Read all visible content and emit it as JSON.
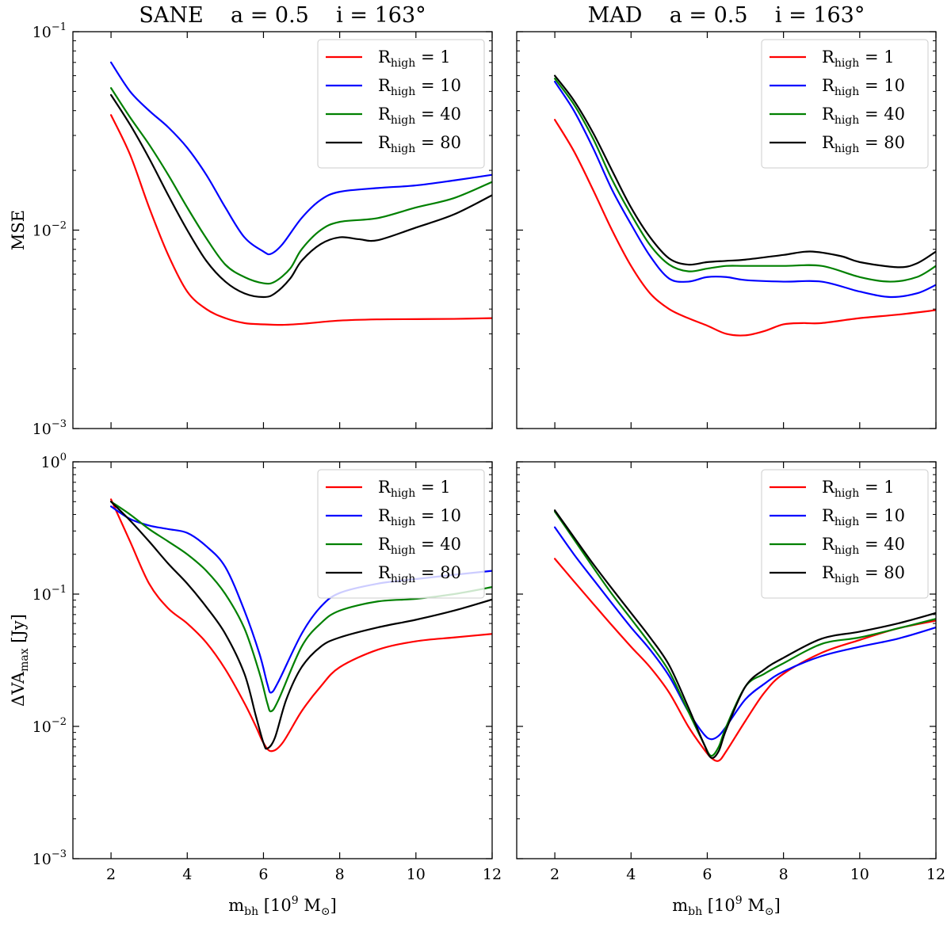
{
  "chart_data": [
    {
      "type": "line",
      "title": "SANE    a = 0.5    i = 163°",
      "xlabel": "",
      "ylabel": "MSE",
      "yscale": "log",
      "xlim": [
        1,
        12
      ],
      "ylim": [
        0.001,
        0.1
      ],
      "xticks": [
        2,
        4,
        6,
        8,
        10,
        12
      ],
      "xtick_labels_shown": false,
      "yticks": [
        0.001,
        0.01,
        0.1
      ],
      "ytick_labels": [
        {
          "base": "10",
          "exp": "−3"
        },
        {
          "base": "10",
          "exp": "−2"
        },
        {
          "base": "10",
          "exp": "−1"
        }
      ],
      "legend_position": "top-right",
      "series": [
        {
          "name": "R",
          "sub": "high",
          "suffix": " = 1",
          "color": "#ff0000",
          "x": [
            2,
            2.5,
            3,
            3.5,
            4,
            4.5,
            5,
            5.5,
            6,
            6.5,
            7,
            8,
            9,
            10,
            11,
            12
          ],
          "y": [
            0.038,
            0.024,
            0.013,
            0.0075,
            0.0049,
            0.004,
            0.0036,
            0.0034,
            0.00335,
            0.00333,
            0.00337,
            0.0035,
            0.00355,
            0.00356,
            0.00357,
            0.0036
          ]
        },
        {
          "name": "R",
          "sub": "high",
          "suffix": " = 10",
          "color": "#0000ff",
          "x": [
            2,
            2.5,
            3,
            3.5,
            4,
            4.5,
            5,
            5.5,
            6,
            6.2,
            6.5,
            7,
            7.5,
            8,
            9,
            10,
            11,
            12
          ],
          "y": [
            0.07,
            0.05,
            0.04,
            0.033,
            0.026,
            0.019,
            0.013,
            0.0092,
            0.0078,
            0.0076,
            0.0085,
            0.0115,
            0.0142,
            0.0156,
            0.0163,
            0.0168,
            0.0178,
            0.019
          ]
        },
        {
          "name": "R",
          "sub": "high",
          "suffix": " = 40",
          "color": "#008000",
          "x": [
            2,
            2.5,
            3,
            3.5,
            4,
            4.5,
            5,
            5.5,
            6,
            6.3,
            6.7,
            7,
            7.5,
            8,
            9,
            10,
            11,
            12
          ],
          "y": [
            0.052,
            0.037,
            0.027,
            0.019,
            0.013,
            0.0091,
            0.0067,
            0.0058,
            0.0054,
            0.0055,
            0.0064,
            0.008,
            0.01,
            0.011,
            0.0115,
            0.013,
            0.0145,
            0.0175
          ]
        },
        {
          "name": "R",
          "sub": "high",
          "suffix": " = 80",
          "color": "#000000",
          "x": [
            2,
            2.5,
            3,
            3.5,
            4,
            4.5,
            5,
            5.5,
            6,
            6.3,
            6.7,
            7,
            7.5,
            8,
            8.5,
            9,
            10,
            11,
            12
          ],
          "y": [
            0.048,
            0.034,
            0.023,
            0.015,
            0.01,
            0.007,
            0.0055,
            0.0048,
            0.0046,
            0.0048,
            0.0057,
            0.007,
            0.0085,
            0.0092,
            0.009,
            0.0089,
            0.0103,
            0.012,
            0.015
          ]
        }
      ]
    },
    {
      "type": "line",
      "title": "MAD    a = 0.5    i = 163°",
      "xlabel": "",
      "ylabel": "",
      "yscale": "log",
      "xlim": [
        1,
        12
      ],
      "ylim": [
        0.001,
        0.1
      ],
      "xticks": [
        2,
        4,
        6,
        8,
        10,
        12
      ],
      "xtick_labels_shown": false,
      "yticks": [
        0.001,
        0.01,
        0.1
      ],
      "ytick_labels_shown": false,
      "legend_position": "top-right",
      "series": [
        {
          "name": "R",
          "sub": "high",
          "suffix": " = 1",
          "color": "#ff0000",
          "x": [
            2,
            2.5,
            3,
            3.5,
            4,
            4.5,
            5,
            5.5,
            6,
            6.5,
            7,
            7.5,
            8,
            8.5,
            9,
            10,
            11,
            12
          ],
          "y": [
            0.036,
            0.025,
            0.016,
            0.01,
            0.0066,
            0.0048,
            0.004,
            0.0036,
            0.0033,
            0.003,
            0.00295,
            0.0031,
            0.00335,
            0.0034,
            0.0034,
            0.0036,
            0.00375,
            0.00395
          ]
        },
        {
          "name": "R",
          "sub": "high",
          "suffix": " = 10",
          "color": "#0000ff",
          "x": [
            2,
            2.5,
            3,
            3.5,
            4,
            4.5,
            5,
            5.5,
            6,
            6.5,
            7,
            8,
            9,
            10,
            10.8,
            11.5,
            12
          ],
          "y": [
            0.056,
            0.04,
            0.026,
            0.016,
            0.0107,
            0.0074,
            0.0057,
            0.0055,
            0.0058,
            0.0058,
            0.0056,
            0.0055,
            0.0055,
            0.0049,
            0.0046,
            0.0048,
            0.0053
          ]
        },
        {
          "name": "R",
          "sub": "high",
          "suffix": " = 40",
          "color": "#008000",
          "x": [
            2,
            2.5,
            3,
            3.5,
            4,
            4.5,
            5,
            5.5,
            6,
            6.5,
            7,
            8,
            9,
            10,
            10.8,
            11.5,
            12
          ],
          "y": [
            0.058,
            0.043,
            0.029,
            0.018,
            0.012,
            0.0084,
            0.0067,
            0.0062,
            0.0064,
            0.0066,
            0.0066,
            0.0066,
            0.0066,
            0.0058,
            0.0055,
            0.0058,
            0.0066
          ]
        },
        {
          "name": "R",
          "sub": "high",
          "suffix": " = 80",
          "color": "#000000",
          "x": [
            2,
            2.5,
            3,
            3.5,
            4,
            4.5,
            5,
            5.5,
            6,
            6.5,
            7,
            8,
            8.7,
            9.5,
            10,
            11,
            11.5,
            12
          ],
          "y": [
            0.06,
            0.045,
            0.031,
            0.02,
            0.013,
            0.0092,
            0.0072,
            0.0067,
            0.0069,
            0.007,
            0.0071,
            0.0075,
            0.0078,
            0.0074,
            0.0069,
            0.0065,
            0.0068,
            0.0078
          ]
        }
      ]
    },
    {
      "type": "line",
      "title": "",
      "xlabel": {
        "base": "m",
        "sub": "bh",
        "unit_pre": "[10",
        "unit_exp": "9",
        "unit_mid": " M",
        "unit_sub": "⊙",
        "unit_post": "]"
      },
      "ylabel": {
        "base": "ΔVA",
        "sub": "max",
        "unit": " [Jy]"
      },
      "yscale": "log",
      "xlim": [
        1,
        12
      ],
      "ylim": [
        0.001,
        1
      ],
      "xticks": [
        2,
        4,
        6,
        8,
        10,
        12
      ],
      "xtick_labels": [
        "2",
        "4",
        "6",
        "8",
        "10",
        "12"
      ],
      "yticks": [
        0.001,
        0.01,
        0.1,
        1
      ],
      "ytick_labels": [
        {
          "base": "10",
          "exp": "−3"
        },
        {
          "base": "10",
          "exp": "−2"
        },
        {
          "base": "10",
          "exp": "−1"
        },
        {
          "base": "10",
          "exp": "0"
        }
      ],
      "legend_position": "top-right",
      "series": [
        {
          "name": "R",
          "sub": "high",
          "suffix": " = 1",
          "color": "#ff0000",
          "x": [
            2,
            2.5,
            3,
            3.5,
            4,
            4.5,
            5,
            5.5,
            5.8,
            6,
            6.2,
            6.5,
            7,
            7.5,
            8,
            9,
            10,
            11,
            12
          ],
          "y": [
            0.52,
            0.25,
            0.12,
            0.078,
            0.06,
            0.043,
            0.027,
            0.015,
            0.01,
            0.0075,
            0.0065,
            0.0075,
            0.013,
            0.02,
            0.028,
            0.038,
            0.044,
            0.047,
            0.05
          ]
        },
        {
          "name": "R",
          "sub": "high",
          "suffix": " = 10",
          "color": "#0000ff",
          "x": [
            2,
            2.5,
            3,
            3.5,
            4,
            4.5,
            5,
            5.5,
            5.9,
            6.1,
            6.2,
            6.4,
            7,
            7.5,
            8,
            9,
            10,
            11,
            12
          ],
          "y": [
            0.46,
            0.37,
            0.33,
            0.31,
            0.29,
            0.23,
            0.16,
            0.075,
            0.035,
            0.021,
            0.018,
            0.022,
            0.05,
            0.08,
            0.102,
            0.12,
            0.13,
            0.14,
            0.15
          ]
        },
        {
          "name": "R",
          "sub": "high",
          "suffix": " = 40",
          "color": "#008000",
          "x": [
            2,
            2.5,
            3,
            3.5,
            4,
            4.5,
            5,
            5.5,
            5.9,
            6.1,
            6.2,
            6.4,
            7,
            7.5,
            8,
            9,
            10,
            11,
            12
          ],
          "y": [
            0.5,
            0.4,
            0.31,
            0.25,
            0.2,
            0.15,
            0.1,
            0.055,
            0.025,
            0.015,
            0.013,
            0.016,
            0.04,
            0.06,
            0.075,
            0.088,
            0.092,
            0.1,
            0.113
          ]
        },
        {
          "name": "R",
          "sub": "high",
          "suffix": " = 80",
          "color": "#000000",
          "x": [
            2,
            2.5,
            3,
            3.5,
            4,
            4.5,
            5,
            5.5,
            5.8,
            6,
            6.1,
            6.3,
            6.6,
            7,
            7.5,
            8,
            9,
            10,
            11,
            12
          ],
          "y": [
            0.5,
            0.36,
            0.25,
            0.17,
            0.12,
            0.08,
            0.05,
            0.025,
            0.012,
            0.0075,
            0.0068,
            0.0082,
            0.016,
            0.028,
            0.04,
            0.047,
            0.056,
            0.064,
            0.075,
            0.091
          ]
        }
      ]
    },
    {
      "type": "line",
      "title": "",
      "xlabel": {
        "base": "m",
        "sub": "bh",
        "unit_pre": "[10",
        "unit_exp": "9",
        "unit_mid": " M",
        "unit_sub": "⊙",
        "unit_post": "]"
      },
      "ylabel": "",
      "yscale": "log",
      "xlim": [
        1,
        12
      ],
      "ylim": [
        0.001,
        1
      ],
      "xticks": [
        2,
        4,
        6,
        8,
        10,
        12
      ],
      "xtick_labels": [
        "2",
        "4",
        "6",
        "8",
        "10",
        "12"
      ],
      "yticks": [
        0.001,
        0.01,
        0.1,
        1
      ],
      "ytick_labels_shown": false,
      "legend_position": "top-right",
      "series": [
        {
          "name": "R",
          "sub": "high",
          "suffix": " = 1",
          "color": "#ff0000",
          "x": [
            2,
            2.5,
            3,
            3.5,
            4,
            4.5,
            5,
            5.5,
            5.9,
            6.1,
            6.3,
            6.5,
            7,
            7.5,
            8,
            9,
            10,
            11,
            12
          ],
          "y": [
            0.185,
            0.125,
            0.085,
            0.058,
            0.04,
            0.028,
            0.018,
            0.01,
            0.0068,
            0.0058,
            0.0055,
            0.0065,
            0.011,
            0.018,
            0.025,
            0.036,
            0.045,
            0.055,
            0.063
          ]
        },
        {
          "name": "R",
          "sub": "high",
          "suffix": " = 10",
          "color": "#0000ff",
          "x": [
            2,
            2.5,
            3,
            3.5,
            4,
            4.5,
            5,
            5.5,
            5.9,
            6.1,
            6.3,
            6.5,
            7,
            7.5,
            8,
            9,
            10,
            11,
            12
          ],
          "y": [
            0.32,
            0.2,
            0.13,
            0.085,
            0.056,
            0.038,
            0.024,
            0.013,
            0.0088,
            0.008,
            0.0085,
            0.01,
            0.016,
            0.021,
            0.026,
            0.034,
            0.04,
            0.046,
            0.056
          ]
        },
        {
          "name": "R",
          "sub": "high",
          "suffix": " = 40",
          "color": "#008000",
          "x": [
            2,
            2.5,
            3,
            3.5,
            4,
            4.5,
            5,
            5.5,
            5.9,
            6.1,
            6.3,
            6.5,
            7,
            7.5,
            8,
            9,
            10,
            11,
            12
          ],
          "y": [
            0.42,
            0.26,
            0.16,
            0.1,
            0.065,
            0.042,
            0.026,
            0.013,
            0.0075,
            0.006,
            0.007,
            0.01,
            0.02,
            0.025,
            0.03,
            0.042,
            0.047,
            0.055,
            0.065
          ]
        },
        {
          "name": "R",
          "sub": "high",
          "suffix": " = 80",
          "color": "#000000",
          "x": [
            2,
            2.5,
            3,
            3.5,
            4,
            4.5,
            5,
            5.5,
            5.9,
            6.1,
            6.3,
            6.5,
            7,
            7.5,
            8,
            9,
            10,
            11,
            12
          ],
          "y": [
            0.43,
            0.27,
            0.17,
            0.11,
            0.072,
            0.047,
            0.029,
            0.014,
            0.0075,
            0.0058,
            0.0065,
            0.0095,
            0.02,
            0.027,
            0.033,
            0.046,
            0.052,
            0.06,
            0.072
          ]
        }
      ]
    }
  ]
}
